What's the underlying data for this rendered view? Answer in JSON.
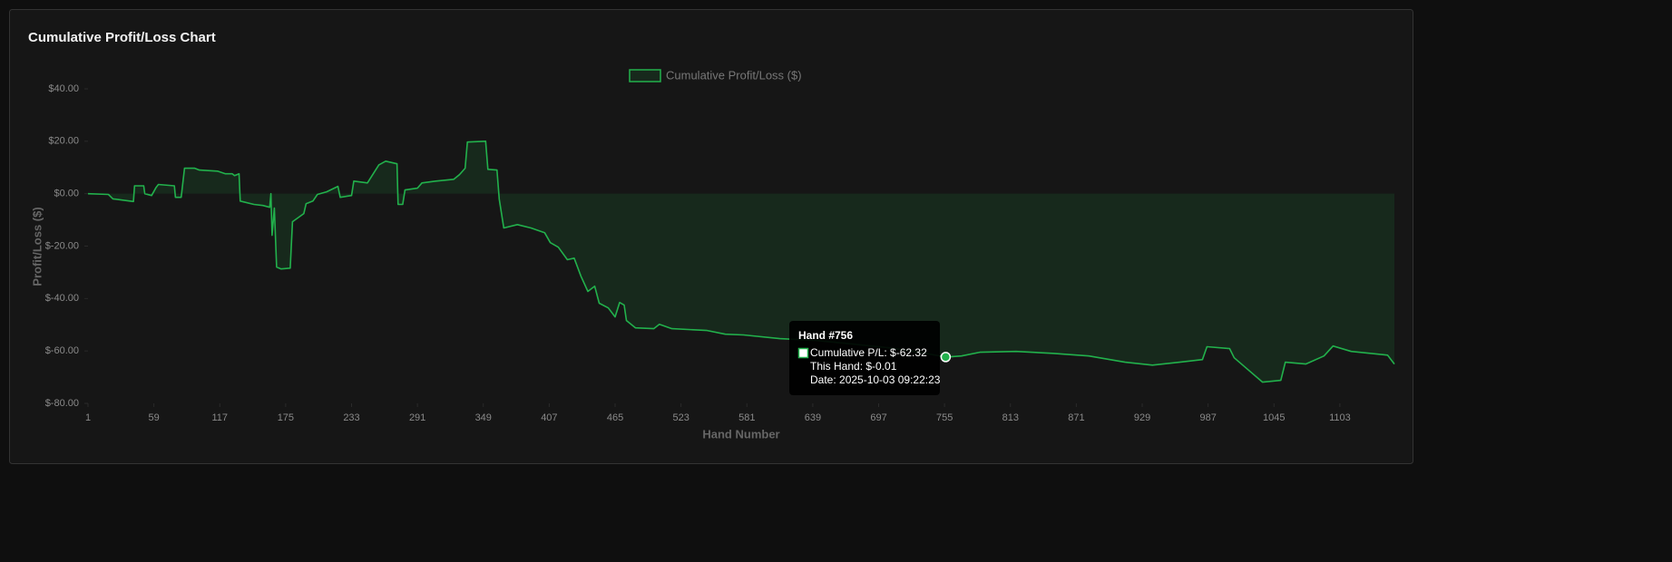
{
  "chart_data": {
    "type": "line",
    "title": "Cumulative Profit/Loss Chart",
    "xlabel": "Hand Number",
    "ylabel": "Profit/Loss ($)",
    "x": [
      1,
      19,
      23,
      41,
      42,
      50,
      51,
      57,
      61,
      63,
      77,
      78,
      83,
      86,
      95,
      99,
      115,
      122,
      128,
      130,
      134,
      135,
      147,
      155,
      161,
      162,
      163,
      165,
      167,
      171,
      179,
      181,
      191,
      193,
      199,
      203,
      211,
      221,
      223,
      233,
      235,
      247,
      257,
      263,
      273,
      274,
      278,
      280,
      291,
      295,
      307,
      323,
      328,
      333,
      335,
      351,
      353,
      361,
      363,
      367,
      379,
      391,
      403,
      408,
      415,
      423,
      429,
      435,
      441,
      447,
      451,
      459,
      465,
      469,
      473,
      475,
      483,
      499,
      504,
      515,
      546,
      562,
      578,
      610,
      642,
      674,
      706,
      722,
      738,
      756,
      770,
      786,
      818,
      850,
      882,
      914,
      938,
      962,
      982,
      986,
      1006,
      1010,
      1022,
      1035,
      1051,
      1055,
      1073,
      1089,
      1097,
      1113,
      1145,
      1151
    ],
    "series": [
      {
        "name": "Cumulative Profit/Loss ($)",
        "color": "#22b14c",
        "fill": true,
        "values": [
          0,
          -0.3,
          -2,
          -3,
          3,
          3,
          0,
          -0.7,
          2.4,
          3.5,
          3,
          -1.4,
          -1.4,
          9.7,
          9.7,
          9,
          8.6,
          7.6,
          7.6,
          6.9,
          7.6,
          -2.8,
          -4.1,
          -4.5,
          -5.2,
          0,
          -15.9,
          -5.5,
          -28,
          -28.7,
          -28.4,
          -10.7,
          -7.6,
          -3.8,
          -2.8,
          -0.3,
          0.7,
          2.8,
          -1.4,
          -0.7,
          4.8,
          4.1,
          11,
          12.4,
          11.4,
          -4.1,
          -4.1,
          1.4,
          2.1,
          4.1,
          4.8,
          5.5,
          7.3,
          9.7,
          19.7,
          20,
          9.3,
          9,
          -2.1,
          -13.1,
          -11.8,
          -13.1,
          -14.9,
          -18.7,
          -20.4,
          -25.2,
          -24.6,
          -31.5,
          -37.3,
          -35.3,
          -41.8,
          -43.6,
          -47,
          -41.5,
          -42.5,
          -48.4,
          -51.2,
          -51.5,
          -49.8,
          -51.5,
          -52.2,
          -53.6,
          -53.9,
          -55.3,
          -56,
          -57.4,
          -58.8,
          -59.8,
          -60.9,
          -62.32,
          -61.9,
          -60.5,
          -60.2,
          -60.9,
          -61.9,
          -64.3,
          -65.4,
          -64.3,
          -63.3,
          -58.4,
          -59.1,
          -62.6,
          -67.1,
          -71.9,
          -71.2,
          -64.3,
          -65,
          -61.9,
          -58.1,
          -60.2,
          -61.6,
          -65
        ]
      }
    ],
    "xlim": [
      1,
      1151
    ],
    "xticks": [
      1,
      59,
      117,
      175,
      233,
      291,
      349,
      407,
      465,
      523,
      581,
      639,
      697,
      755,
      813,
      871,
      929,
      987,
      1045,
      1103
    ],
    "ylim": [
      -80,
      40
    ],
    "yticks": [
      {
        "value": -80,
        "label": "$-80.00"
      },
      {
        "value": -60,
        "label": "$-60.00"
      },
      {
        "value": -40,
        "label": "$-40.00"
      },
      {
        "value": -20,
        "label": "$-20.00"
      },
      {
        "value": 0,
        "label": "$0.00"
      },
      {
        "value": 20,
        "label": "$20.00"
      },
      {
        "value": 40,
        "label": "$40.00"
      }
    ],
    "legend": "top",
    "tooltip": {
      "title": "Hand #756",
      "lines": [
        "Cumulative P/L: $-62.32",
        "This Hand: $-0.01",
        "Date: 2025-10-03 09:22:23"
      ]
    }
  }
}
